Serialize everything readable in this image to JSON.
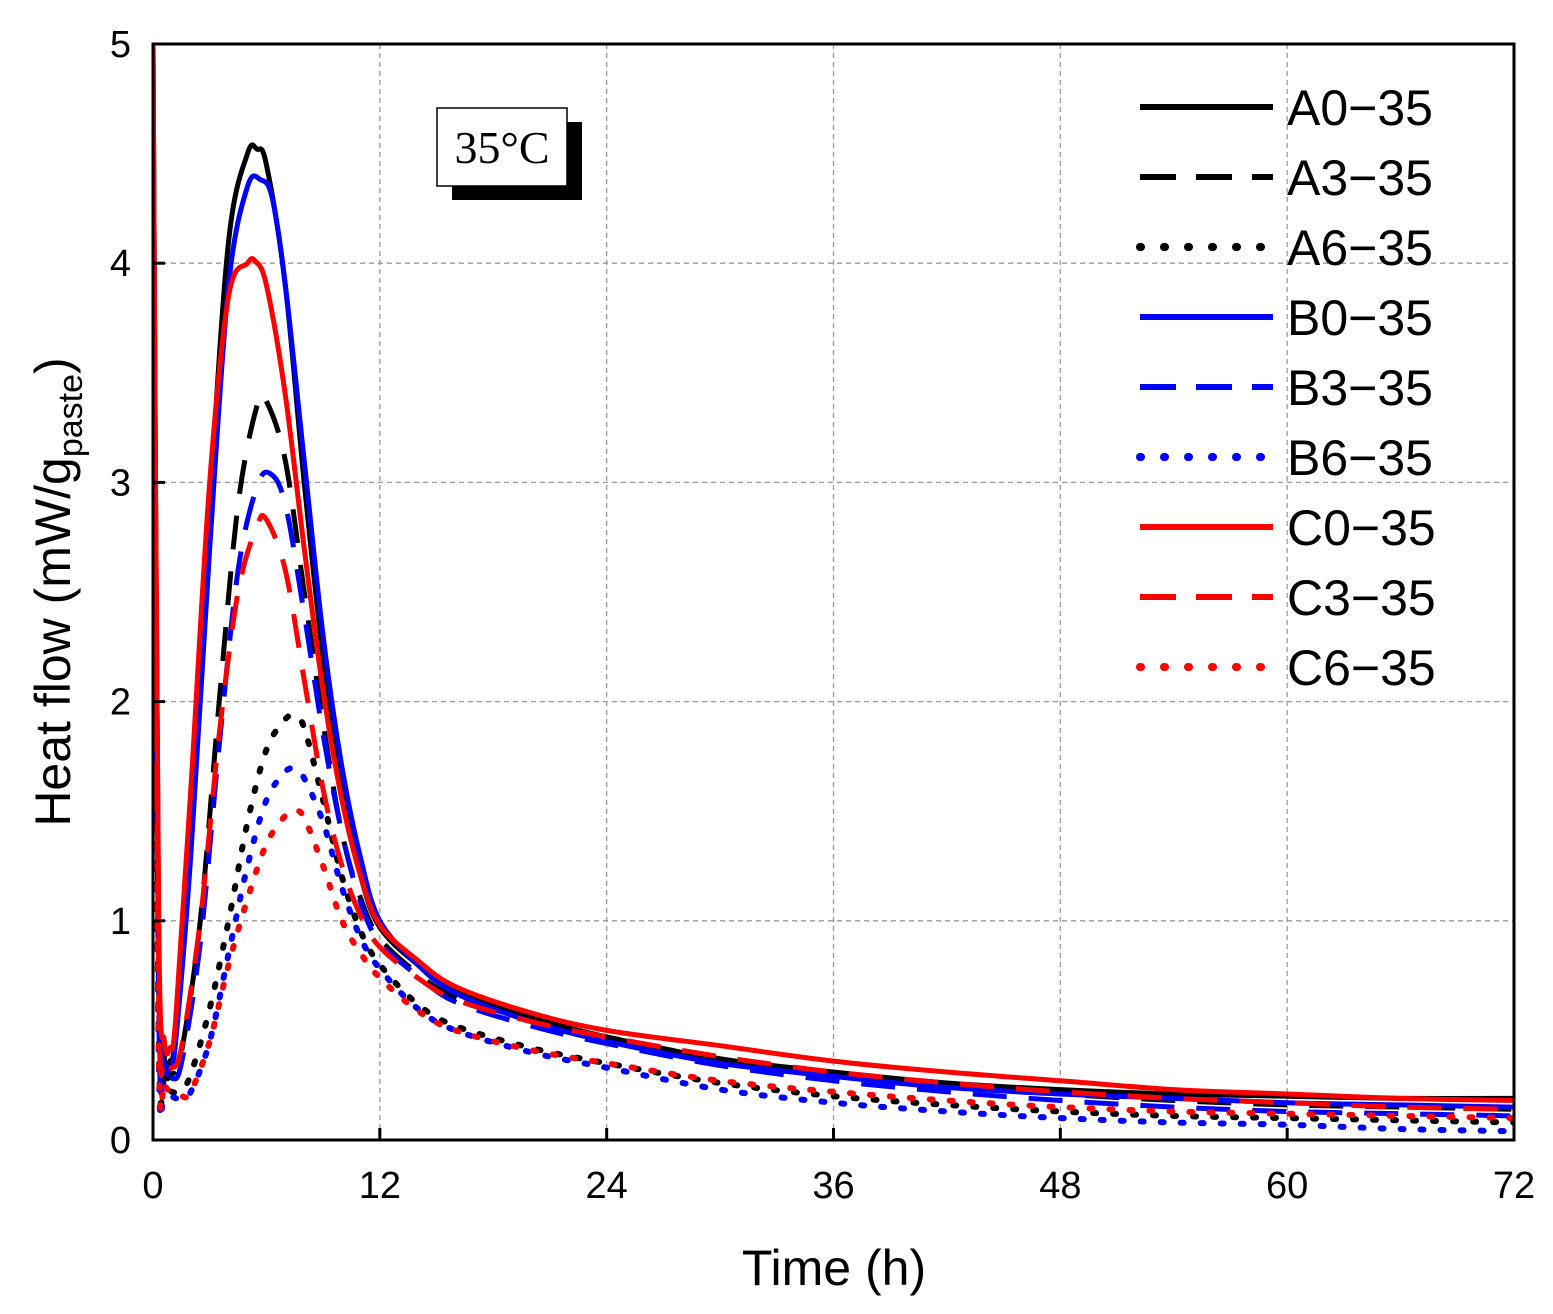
{
  "chart_data": {
    "type": "line",
    "title": "",
    "annotation": "35°C",
    "xlabel": "Time (h)",
    "ylabel_main": "Heat flow (mW/g",
    "ylabel_sub": "paste",
    "ylabel_close": ")",
    "xlim": [
      0,
      72
    ],
    "ylim": [
      0,
      5
    ],
    "xticks": [
      0,
      12,
      24,
      36,
      48,
      60,
      72
    ],
    "yticks": [
      0,
      1,
      2,
      3,
      4,
      5
    ],
    "grid": true,
    "legend_position": "top-right",
    "colors": {
      "A": "#000000",
      "B": "#0000ff",
      "C": "#ff0000"
    },
    "series": [
      {
        "name": "A0−35",
        "color": "#000000",
        "style": "solid",
        "x": [
          0,
          0.3,
          0.6,
          0.9,
          1.2,
          2,
          3,
          4,
          5,
          5.5,
          6,
          7,
          8,
          9,
          10,
          11,
          12,
          14,
          16,
          20,
          24,
          30,
          36,
          42,
          48,
          54,
          60,
          66,
          72
        ],
        "y": [
          5.0,
          0.9,
          0.38,
          0.36,
          0.5,
          1.5,
          2.9,
          4.1,
          4.5,
          4.52,
          4.45,
          3.9,
          3.0,
          2.2,
          1.6,
          1.2,
          0.97,
          0.8,
          0.68,
          0.56,
          0.47,
          0.37,
          0.31,
          0.26,
          0.23,
          0.21,
          0.2,
          0.19,
          0.19
        ]
      },
      {
        "name": "A3−35",
        "color": "#000000",
        "style": "dashed",
        "x": [
          0,
          0.3,
          0.6,
          1,
          1.5,
          2.5,
          3.5,
          4.5,
          5.5,
          6,
          7,
          8,
          9,
          10,
          11,
          12,
          14,
          16,
          20,
          24,
          30,
          36,
          42,
          48,
          54,
          60,
          66,
          72
        ],
        "y": [
          4.6,
          0.7,
          0.32,
          0.3,
          0.4,
          1.0,
          2.0,
          2.9,
          3.35,
          3.37,
          3.1,
          2.5,
          1.9,
          1.4,
          1.1,
          0.92,
          0.76,
          0.65,
          0.55,
          0.47,
          0.37,
          0.3,
          0.25,
          0.21,
          0.18,
          0.16,
          0.15,
          0.14
        ]
      },
      {
        "name": "A6−35",
        "color": "#000000",
        "style": "dotted",
        "x": [
          0,
          0.3,
          0.6,
          1,
          1.5,
          2,
          3,
          4,
          5,
          6,
          7,
          7.5,
          8,
          9,
          10,
          11,
          12,
          14,
          16,
          20,
          24,
          30,
          36,
          42,
          48,
          54,
          60,
          66,
          72
        ],
        "y": [
          4.0,
          0.5,
          0.27,
          0.22,
          0.23,
          0.3,
          0.6,
          1.0,
          1.45,
          1.78,
          1.92,
          1.93,
          1.88,
          1.55,
          1.2,
          0.95,
          0.8,
          0.62,
          0.52,
          0.42,
          0.35,
          0.26,
          0.2,
          0.16,
          0.13,
          0.11,
          0.1,
          0.09,
          0.08
        ]
      },
      {
        "name": "B0−35",
        "color": "#0000ff",
        "style": "solid",
        "x": [
          0,
          0.3,
          0.6,
          0.9,
          1.2,
          2,
          3,
          4,
          5,
          5.7,
          6.3,
          7,
          8,
          9,
          10,
          11,
          12,
          14,
          16,
          20,
          24,
          30,
          36,
          42,
          48,
          54,
          60,
          66,
          72
        ],
        "y": [
          5.0,
          0.85,
          0.35,
          0.33,
          0.45,
          1.3,
          2.7,
          3.9,
          4.35,
          4.38,
          4.3,
          3.9,
          3.1,
          2.3,
          1.7,
          1.28,
          1.0,
          0.8,
          0.67,
          0.54,
          0.45,
          0.35,
          0.29,
          0.24,
          0.21,
          0.19,
          0.17,
          0.16,
          0.15
        ]
      },
      {
        "name": "B3−35",
        "color": "#0000ff",
        "style": "dashed",
        "x": [
          0,
          0.3,
          0.6,
          1,
          1.5,
          2.5,
          3.5,
          4.5,
          5.5,
          6.2,
          7,
          8,
          9,
          10,
          11,
          12,
          14,
          16,
          20,
          24,
          30,
          36,
          42,
          48,
          54,
          60,
          66,
          72
        ],
        "y": [
          4.4,
          0.6,
          0.3,
          0.28,
          0.35,
          0.9,
          1.8,
          2.6,
          2.98,
          3.04,
          2.9,
          2.4,
          1.85,
          1.4,
          1.08,
          0.9,
          0.75,
          0.63,
          0.52,
          0.44,
          0.34,
          0.27,
          0.22,
          0.18,
          0.15,
          0.13,
          0.12,
          0.11
        ]
      },
      {
        "name": "B6−35",
        "color": "#0000ff",
        "style": "dotted",
        "x": [
          0,
          0.3,
          0.6,
          1,
          1.5,
          2,
          3,
          4,
          5,
          6,
          7,
          7.5,
          8,
          9,
          10,
          11,
          12,
          14,
          16,
          20,
          24,
          30,
          36,
          42,
          48,
          54,
          60,
          66,
          72
        ],
        "y": [
          3.8,
          0.4,
          0.25,
          0.2,
          0.19,
          0.22,
          0.45,
          0.85,
          1.25,
          1.55,
          1.68,
          1.69,
          1.65,
          1.45,
          1.15,
          0.92,
          0.78,
          0.6,
          0.5,
          0.4,
          0.33,
          0.23,
          0.17,
          0.13,
          0.1,
          0.08,
          0.07,
          0.05,
          0.04
        ]
      },
      {
        "name": "C0−35",
        "color": "#ff0000",
        "style": "solid",
        "x": [
          0,
          0.3,
          0.6,
          0.9,
          1.2,
          2,
          3,
          4,
          5,
          5.4,
          6,
          7,
          8,
          9,
          10,
          11,
          12,
          14,
          16,
          20,
          24,
          30,
          36,
          42,
          48,
          54,
          60,
          66,
          72
        ],
        "y": [
          5.0,
          1.0,
          0.45,
          0.42,
          0.55,
          1.6,
          3.0,
          3.85,
          4.0,
          4.01,
          3.9,
          3.4,
          2.7,
          2.05,
          1.55,
          1.2,
          0.98,
          0.82,
          0.7,
          0.58,
          0.5,
          0.43,
          0.36,
          0.31,
          0.27,
          0.23,
          0.21,
          0.19,
          0.18
        ]
      },
      {
        "name": "C3−35",
        "color": "#ff0000",
        "style": "dashed",
        "x": [
          0,
          0.3,
          0.6,
          1,
          1.5,
          2.5,
          3.5,
          4.5,
          5.5,
          6,
          7,
          8,
          9,
          10,
          11,
          12,
          14,
          16,
          20,
          24,
          30,
          36,
          42,
          48,
          54,
          60,
          66,
          72
        ],
        "y": [
          4.5,
          0.7,
          0.36,
          0.33,
          0.42,
          1.0,
          1.85,
          2.5,
          2.8,
          2.83,
          2.6,
          2.1,
          1.6,
          1.25,
          1.02,
          0.88,
          0.74,
          0.64,
          0.54,
          0.47,
          0.38,
          0.31,
          0.26,
          0.22,
          0.19,
          0.17,
          0.15,
          0.14
        ]
      },
      {
        "name": "C6−35",
        "color": "#ff0000",
        "style": "dotted",
        "x": [
          0,
          0.3,
          0.6,
          1,
          1.5,
          2,
          3,
          4,
          5,
          6,
          7,
          7.5,
          8,
          9,
          10,
          11,
          12,
          14,
          16,
          20,
          24,
          30,
          36,
          42,
          48,
          54,
          60,
          66,
          72
        ],
        "y": [
          3.9,
          0.45,
          0.26,
          0.22,
          0.2,
          0.22,
          0.45,
          0.8,
          1.1,
          1.35,
          1.48,
          1.5,
          1.47,
          1.25,
          1.0,
          0.85,
          0.74,
          0.59,
          0.5,
          0.41,
          0.35,
          0.27,
          0.22,
          0.18,
          0.15,
          0.13,
          0.12,
          0.11,
          0.1
        ]
      }
    ]
  }
}
